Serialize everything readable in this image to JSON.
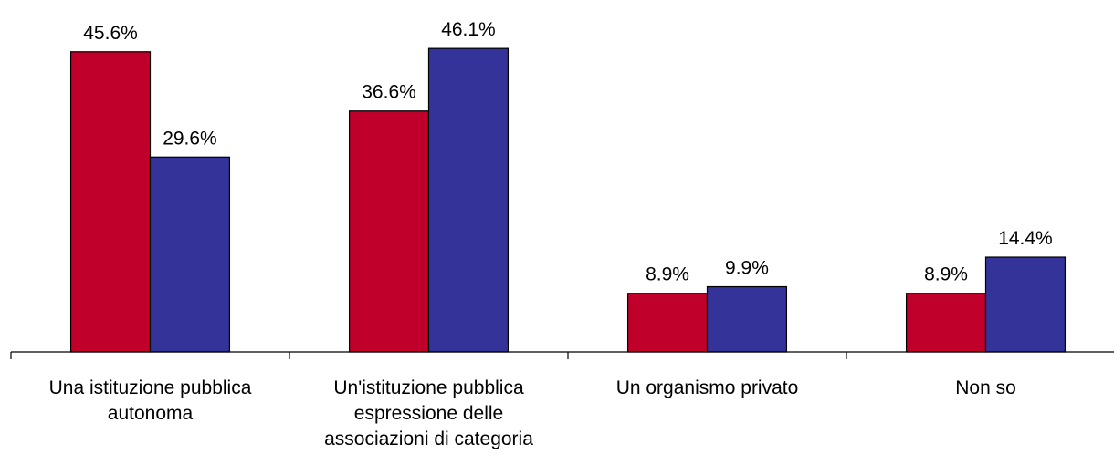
{
  "chart_data": {
    "type": "bar",
    "categories": [
      "Una istituzione pubblica autonoma",
      "Un'istituzione pubblica espressione delle associazioni di categoria",
      "Un organismo privato",
      "Non so"
    ],
    "series": [
      {
        "color": "#c0002a",
        "values": [
          45.6,
          36.6,
          8.9,
          8.9
        ],
        "value_labels": [
          "45.6%",
          "36.6%",
          "8.9%",
          "8.9%"
        ]
      },
      {
        "color": "#333399",
        "values": [
          29.6,
          46.1,
          9.9,
          14.4
        ],
        "value_labels": [
          "29.6%",
          "46.1%",
          "9.9%",
          "14.4%"
        ]
      }
    ],
    "ylim": [
      0,
      50
    ]
  }
}
